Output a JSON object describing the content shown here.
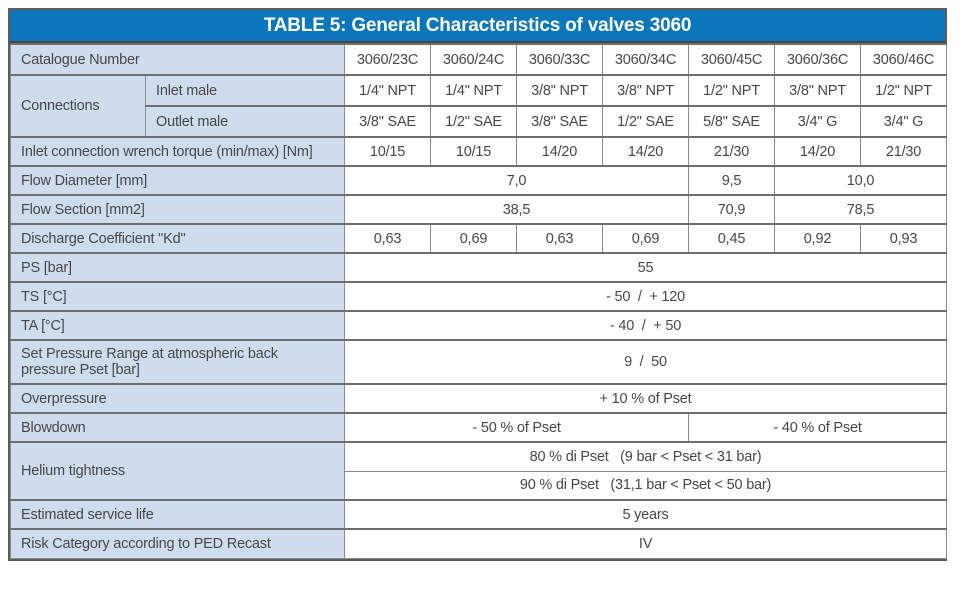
{
  "title": "TABLE 5: General Characteristics of valves 3060",
  "colors": {
    "title_bg": "#0b77ba",
    "title_text": "#ffffff",
    "label_cell_bg": "#cfdcee",
    "body_text": "#474747",
    "grid_line": "#6e6e6e"
  },
  "table": {
    "rows": [
      {
        "id": "catalogue",
        "cells": [
          {
            "t": "Catalogue Number",
            "label": true,
            "cs": 2
          },
          {
            "t": "3060/23C"
          },
          {
            "t": "3060/24C"
          },
          {
            "t": "3060/33C"
          },
          {
            "t": "3060/34C"
          },
          {
            "t": "3060/45C"
          },
          {
            "t": "3060/36C"
          },
          {
            "t": "3060/46C"
          }
        ]
      },
      {
        "id": "inlet-male",
        "cells": [
          {
            "t": "Connections",
            "label": true,
            "rs": 2
          },
          {
            "t": "Inlet male",
            "label": true
          },
          {
            "t": "1/4\" NPT"
          },
          {
            "t": "1/4\" NPT"
          },
          {
            "t": "3/8\" NPT"
          },
          {
            "t": "3/8\" NPT"
          },
          {
            "t": "1/2\" NPT"
          },
          {
            "t": "3/8\" NPT"
          },
          {
            "t": "1/2\" NPT"
          }
        ]
      },
      {
        "id": "outlet-male",
        "cells": [
          {
            "t": "Outlet male",
            "label": true
          },
          {
            "t": "3/8\" SAE"
          },
          {
            "t": "1/2\" SAE"
          },
          {
            "t": "3/8\" SAE"
          },
          {
            "t": "1/2\" SAE"
          },
          {
            "t": "5/8\" SAE"
          },
          {
            "t": "3/4\" G"
          },
          {
            "t": "3/4\" G"
          }
        ]
      },
      {
        "id": "wrench-torque",
        "cells": [
          {
            "t": "Inlet connection wrench torque (min/max) [Nm]",
            "label": true,
            "cs": 2
          },
          {
            "t": "10/15"
          },
          {
            "t": "10/15"
          },
          {
            "t": "14/20"
          },
          {
            "t": "14/20"
          },
          {
            "t": "21/30"
          },
          {
            "t": "14/20"
          },
          {
            "t": "21/30"
          }
        ]
      },
      {
        "id": "flow-diameter",
        "cells": [
          {
            "t": "Flow Diameter [mm]",
            "label": true,
            "cs": 2
          },
          {
            "t": "7,0",
            "cs": 4
          },
          {
            "t": "9,5"
          },
          {
            "t": "10,0",
            "cs": 2
          }
        ]
      },
      {
        "id": "flow-section",
        "cells": [
          {
            "t": "Flow Section [mm2]",
            "label": true,
            "cs": 2
          },
          {
            "t": "38,5",
            "cs": 4
          },
          {
            "t": "70,9"
          },
          {
            "t": "78,5",
            "cs": 2
          }
        ]
      },
      {
        "id": "discharge-coefficient",
        "cells": [
          {
            "t": "Discharge Coefficient \"Kd\"",
            "label": true,
            "cs": 2
          },
          {
            "t": "0,63"
          },
          {
            "t": "0,69"
          },
          {
            "t": "0,63"
          },
          {
            "t": "0,69"
          },
          {
            "t": "0,45"
          },
          {
            "t": "0,92"
          },
          {
            "t": "0,93"
          }
        ]
      },
      {
        "id": "ps",
        "cells": [
          {
            "t": "PS [bar]",
            "label": true,
            "cs": 2
          },
          {
            "t": "55",
            "cs": 7
          }
        ]
      },
      {
        "id": "ts",
        "cells": [
          {
            "t": "TS [°C]",
            "label": true,
            "cs": 2
          },
          {
            "t": "- 50  /  + 120",
            "cs": 7
          }
        ]
      },
      {
        "id": "ta",
        "cells": [
          {
            "t": "TA [°C]",
            "label": true,
            "cs": 2
          },
          {
            "t": "- 40  /  + 50",
            "cs": 7
          }
        ]
      },
      {
        "id": "set-pressure-range",
        "cells": [
          {
            "t": "Set Pressure Range at atmospheric back pressure Pset [bar]",
            "label": true,
            "cs": 2
          },
          {
            "t": "9  /  50",
            "cs": 7
          }
        ]
      },
      {
        "id": "overpressure",
        "cells": [
          {
            "t": "Overpressure",
            "label": true,
            "cs": 2
          },
          {
            "t": "+ 10 % of Pset",
            "cs": 7
          }
        ]
      },
      {
        "id": "blowdown",
        "cells": [
          {
            "t": "Blowdown",
            "label": true,
            "cs": 2
          },
          {
            "t": "- 50 % of Pset",
            "cs": 4
          },
          {
            "t": "- 40 % of Pset",
            "cs": 3
          }
        ]
      },
      {
        "id": "helium-tightness-1",
        "cells": [
          {
            "t": "Helium tightness",
            "label": true,
            "cs": 2,
            "rs": 2
          },
          {
            "t": "80 % di Pset   (9 bar < Pset < 31 bar)",
            "cs": 7
          }
        ]
      },
      {
        "id": "helium-tightness-2",
        "inner": true,
        "cells": [
          {
            "t": "90 % di Pset   (31,1 bar < Pset < 50 bar)",
            "cs": 7
          }
        ]
      },
      {
        "id": "estimated-service-life",
        "cells": [
          {
            "t": "Estimated service life",
            "label": true,
            "cs": 2
          },
          {
            "t": "5 years",
            "cs": 7
          }
        ]
      },
      {
        "id": "risk-category",
        "cells": [
          {
            "t": "Risk Category according to PED Recast",
            "label": true,
            "cs": 2
          },
          {
            "t": "IV",
            "cs": 7
          }
        ]
      }
    ]
  }
}
